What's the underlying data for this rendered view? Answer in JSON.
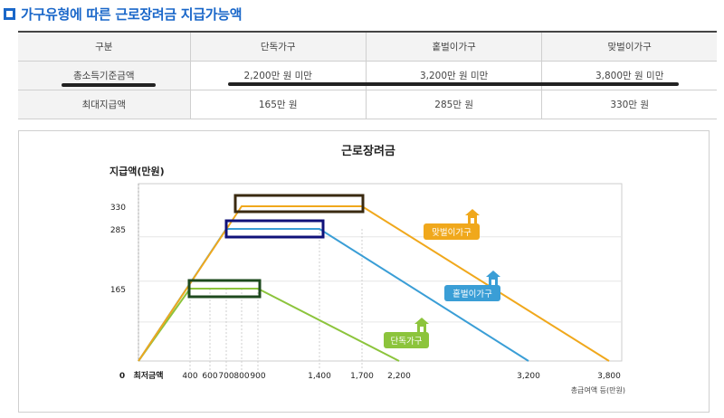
{
  "page": {
    "title": "가구유형에 따른 근로장려금 지급가능액"
  },
  "table": {
    "headers": [
      "구분",
      "단독가구",
      "홑벌이가구",
      "맞벌이가구"
    ],
    "rows": [
      [
        "총소득기준금액",
        "2,200만 원 미만",
        "3,200만 원 미만",
        "3,800만 원 미만"
      ],
      [
        "최대지급액",
        "165만 원",
        "285만 원",
        "330만 원"
      ]
    ]
  },
  "chart_data": {
    "type": "line",
    "title": "근로장려금",
    "ylabel": "지급액(만원)",
    "xlabel": "총급여액 등(만원)",
    "x_origin_label": "0",
    "x_min_label": "최저금액",
    "x_ticks": [
      400,
      600,
      700,
      800,
      900,
      1400,
      1700,
      2200,
      3200,
      3800
    ],
    "x_tick_labels": [
      "400",
      "600",
      "700",
      "800",
      "900",
      "1,400",
      "1,700",
      "2,200",
      "3,200",
      "3,800"
    ],
    "y_ticks": [
      165,
      285,
      330
    ],
    "y_tick_labels": [
      "165",
      "285",
      "330"
    ],
    "series": [
      {
        "name": "단독가구",
        "color": "#8cc43c",
        "points": [
          [
            0,
            0
          ],
          [
            400,
            165
          ],
          [
            900,
            165
          ],
          [
            2200,
            0
          ]
        ],
        "icon": "house-icon"
      },
      {
        "name": "홑벌이가구",
        "color": "#3a9ed6",
        "points": [
          [
            0,
            0
          ],
          [
            700,
            285
          ],
          [
            1400,
            285
          ],
          [
            3200,
            0
          ]
        ],
        "icon": "house-icon"
      },
      {
        "name": "맞벌이가구",
        "color": "#f0a81c",
        "points": [
          [
            0,
            0
          ],
          [
            800,
            330
          ],
          [
            1700,
            330
          ],
          [
            3800,
            0
          ]
        ],
        "icon": "house-icon"
      }
    ]
  }
}
